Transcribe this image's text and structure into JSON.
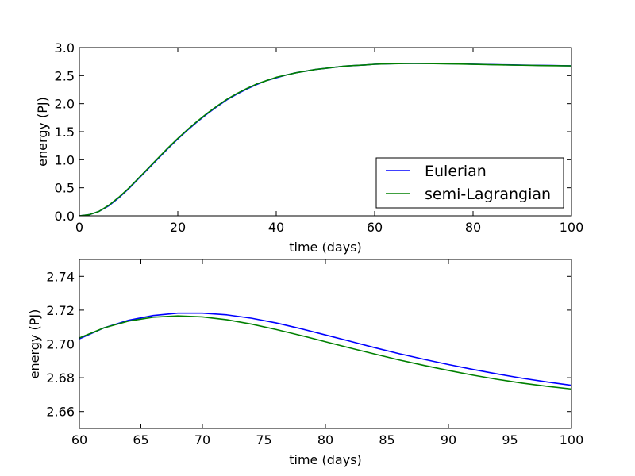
{
  "chart_data": [
    {
      "type": "line",
      "xlabel": "time (days)",
      "ylabel": "energy (PJ)",
      "xlim": [
        0,
        100
      ],
      "ylim": [
        0,
        3.0
      ],
      "xticks": [
        0,
        20,
        40,
        60,
        80,
        100
      ],
      "yticks": [
        0.0,
        0.5,
        1.0,
        1.5,
        2.0,
        2.5,
        3.0
      ],
      "ytick_decimals": 1,
      "grid": false,
      "legend": {
        "placement": "lower-right",
        "entries": [
          "Eulerian",
          "semi-Lagrangian"
        ]
      },
      "series": [
        {
          "name": "Eulerian",
          "color": "#0000ff",
          "x": [
            0,
            2,
            4,
            6,
            8,
            10,
            12,
            14,
            16,
            18,
            20,
            22,
            24,
            26,
            28,
            30,
            32,
            34,
            36,
            38,
            40,
            42,
            44,
            46,
            48,
            50,
            52,
            54,
            56,
            58,
            60,
            62,
            64,
            66,
            68,
            70,
            72,
            74,
            76,
            78,
            80,
            82,
            84,
            86,
            88,
            90,
            92,
            94,
            96,
            98,
            100
          ],
          "y": [
            0.0,
            0.02,
            0.08,
            0.18,
            0.32,
            0.48,
            0.66,
            0.84,
            1.02,
            1.2,
            1.37,
            1.53,
            1.68,
            1.82,
            1.95,
            2.07,
            2.17,
            2.26,
            2.34,
            2.41,
            2.46,
            2.51,
            2.55,
            2.58,
            2.61,
            2.63,
            2.65,
            2.67,
            2.68,
            2.69,
            2.703,
            2.709,
            2.714,
            2.717,
            2.718,
            2.718,
            2.717,
            2.714,
            2.711,
            2.708,
            2.704,
            2.701,
            2.697,
            2.694,
            2.691,
            2.688,
            2.685,
            2.682,
            2.68,
            2.677,
            2.675
          ]
        },
        {
          "name": "semi-Lagrangian",
          "color": "#008000",
          "x": [
            0,
            2,
            4,
            6,
            8,
            10,
            12,
            14,
            16,
            18,
            20,
            22,
            24,
            26,
            28,
            30,
            32,
            34,
            36,
            38,
            40,
            42,
            44,
            46,
            48,
            50,
            52,
            54,
            56,
            58,
            60,
            62,
            64,
            66,
            68,
            70,
            72,
            74,
            76,
            78,
            80,
            82,
            84,
            86,
            88,
            90,
            92,
            94,
            96,
            98,
            100
          ],
          "y": [
            0.0,
            0.02,
            0.08,
            0.19,
            0.33,
            0.49,
            0.67,
            0.85,
            1.03,
            1.21,
            1.38,
            1.54,
            1.69,
            1.83,
            1.96,
            2.08,
            2.18,
            2.27,
            2.35,
            2.41,
            2.47,
            2.51,
            2.55,
            2.58,
            2.61,
            2.63,
            2.65,
            2.67,
            2.68,
            2.69,
            2.703,
            2.709,
            2.713,
            2.716,
            2.717,
            2.716,
            2.714,
            2.711,
            2.708,
            2.705,
            2.702,
            2.698,
            2.694,
            2.691,
            2.688,
            2.685,
            2.682,
            2.679,
            2.677,
            2.675,
            2.673
          ]
        }
      ]
    },
    {
      "type": "line",
      "xlabel": "time (days)",
      "ylabel": "energy (PJ)",
      "xlim": [
        60,
        100
      ],
      "ylim": [
        2.65,
        2.75
      ],
      "xticks": [
        60,
        65,
        70,
        75,
        80,
        85,
        90,
        95,
        100
      ],
      "yticks": [
        2.66,
        2.68,
        2.7,
        2.72,
        2.74
      ],
      "ytick_decimals": 2,
      "grid": false,
      "series": [
        {
          "name": "Eulerian",
          "color": "#0000ff",
          "x": [
            60,
            62,
            64,
            66,
            68,
            70,
            72,
            74,
            76,
            78,
            80,
            82,
            84,
            86,
            88,
            90,
            92,
            94,
            96,
            98,
            100
          ],
          "y": [
            2.703,
            2.7095,
            2.714,
            2.7168,
            2.7182,
            2.7182,
            2.7172,
            2.7152,
            2.7124,
            2.709,
            2.7053,
            2.7016,
            2.6978,
            2.6942,
            2.6909,
            2.6878,
            2.6849,
            2.6822,
            2.6797,
            2.6775,
            2.6755
          ]
        },
        {
          "name": "semi-Lagrangian",
          "color": "#008000",
          "x": [
            60,
            62,
            64,
            66,
            68,
            70,
            72,
            74,
            76,
            78,
            80,
            82,
            84,
            86,
            88,
            90,
            92,
            94,
            96,
            98,
            100
          ],
          "y": [
            2.7035,
            2.7095,
            2.7135,
            2.7158,
            2.7166,
            2.716,
            2.7143,
            2.7117,
            2.7085,
            2.705,
            2.7013,
            2.6976,
            2.694,
            2.6905,
            2.6873,
            2.6843,
            2.6815,
            2.679,
            2.6768,
            2.6749,
            2.6733
          ]
        }
      ]
    }
  ]
}
